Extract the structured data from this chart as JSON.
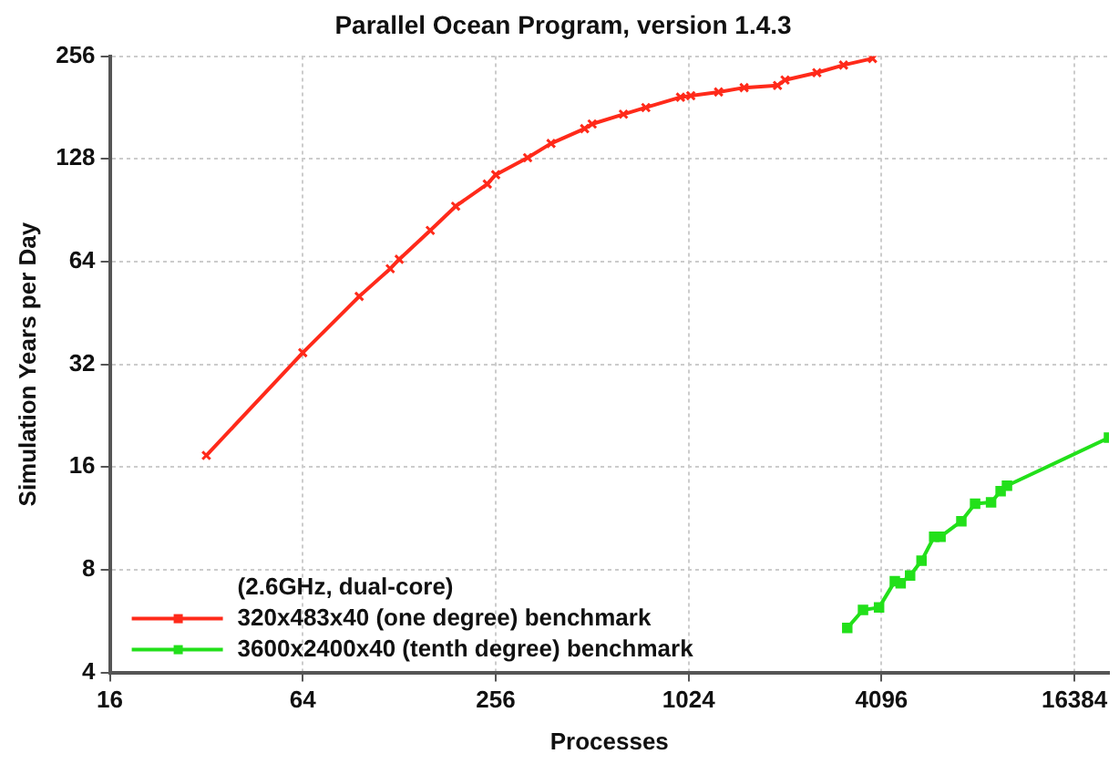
{
  "chart_data": {
    "type": "line",
    "title": "Parallel Ocean Program, version 1.4.3",
    "xlabel": "Processes",
    "ylabel": "Simulation Years per Day",
    "legend_title": "(2.6GHz, dual-core)",
    "legend": "bottom left",
    "grid": true,
    "log": "xy",
    "line_style": "solid",
    "xlim": [
      16,
      21000
    ],
    "xticks": [
      16,
      64,
      256,
      1024,
      4096,
      16384
    ],
    "ylim": [
      4,
      256
    ],
    "yticks": [
      4,
      8,
      16,
      32,
      64,
      128,
      256
    ],
    "series": [
      {
        "name": "320x483x40 (one degree) benchmark",
        "color": "#ff2a1a",
        "marker": "cross",
        "x": [
          32,
          64,
          96,
          120,
          128,
          160,
          192,
          241,
          256,
          322,
          381,
          485,
          512,
          641,
          753,
          966,
          1040,
          1270,
          1526,
          1940,
          2048,
          2574,
          3117,
          3840
        ],
        "values": [
          17.3,
          34.6,
          50.6,
          61,
          65,
          79,
          93,
          108,
          115,
          129,
          142,
          157,
          162,
          173,
          181,
          194,
          196,
          201,
          207,
          210,
          218,
          229,
          241,
          252
        ]
      },
      {
        "name": "3600x2400x40 (tenth degree) benchmark",
        "color": "#22e01a",
        "marker": "square",
        "x": [
          3202,
          3586,
          4024,
          4507,
          4700,
          5030,
          5460,
          5980,
          6260,
          7270,
          8025,
          9000,
          9640,
          10090,
          21000
        ],
        "values": [
          5.4,
          6.1,
          6.2,
          7.4,
          7.3,
          7.7,
          8.5,
          10.0,
          10.0,
          11.1,
          12.5,
          12.6,
          13.6,
          14.1,
          19.5
        ]
      }
    ]
  }
}
